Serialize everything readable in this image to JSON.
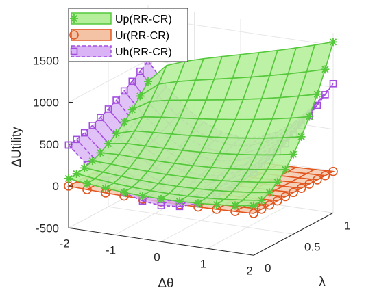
{
  "chart_data": {
    "type": "surface3d",
    "title": "",
    "xlabel": "Δθ",
    "ylabel": "λ",
    "zlabel": "ΔUtility",
    "x_range": [
      -2,
      2
    ],
    "y_range": [
      0,
      1
    ],
    "z_range": [
      -500,
      1500
    ],
    "x_ticks": [
      "-2",
      "-1",
      "0",
      "1",
      "2"
    ],
    "y_ticks": [
      "0",
      "0.5",
      "1"
    ],
    "z_ticks": [
      "-500",
      "0",
      "500",
      "1000",
      "1500"
    ],
    "grid": true,
    "legend_position": "top-left",
    "series": [
      {
        "name": "Up(RR-CR)",
        "color": "#55c83c",
        "fill": "#b6ef9b",
        "marker": "asterisk",
        "x": [
          -2,
          -1.6,
          -1.2,
          -0.8,
          -0.4,
          0,
          0.4,
          0.8,
          1.2,
          1.6,
          2
        ],
        "y": [
          0,
          0.1,
          0.2,
          0.3,
          0.4,
          0.5,
          0.6,
          0.7,
          0.8,
          0.9,
          1
        ],
        "z_model": "z = 10 + 20*x^2 + 1450*y^2 * (0.45 + 0.55*((x+2)/4)^0.5)"
      },
      {
        "name": "Ur(RR-CR)",
        "color": "#e2561f",
        "fill": "#f4c3a6",
        "marker": "circle",
        "x": [
          -2,
          -1.6,
          -1.2,
          -0.8,
          -0.4,
          0,
          0.4,
          0.8,
          1.2,
          1.6,
          2
        ],
        "y": [
          0,
          0.1,
          0.2,
          0.3,
          0.4,
          0.5,
          0.6,
          0.7,
          0.8,
          0.9,
          1
        ],
        "z_model": "z = -25*(1 - x^2/4) - 5*y"
      },
      {
        "name": "Uh(RR-CR)",
        "color": "#a34ce0",
        "fill": "#d9b3f5",
        "marker": "square",
        "x": [
          -2,
          -1.6,
          -1.2,
          -0.8,
          -0.4,
          0,
          0.4,
          0.8,
          1.2,
          1.6,
          2
        ],
        "y": [
          0,
          0.1,
          0.2,
          0.3,
          0.4,
          0.5,
          0.6,
          0.7,
          0.8,
          0.9,
          1
        ],
        "z_model": "z = 140*x^2 - 70 + 650*(y^1.5) * 0.5*((x+2)/4 + (2-x)/4*0.9) * (1 + 0.7*(x/2)^2)"
      }
    ]
  }
}
